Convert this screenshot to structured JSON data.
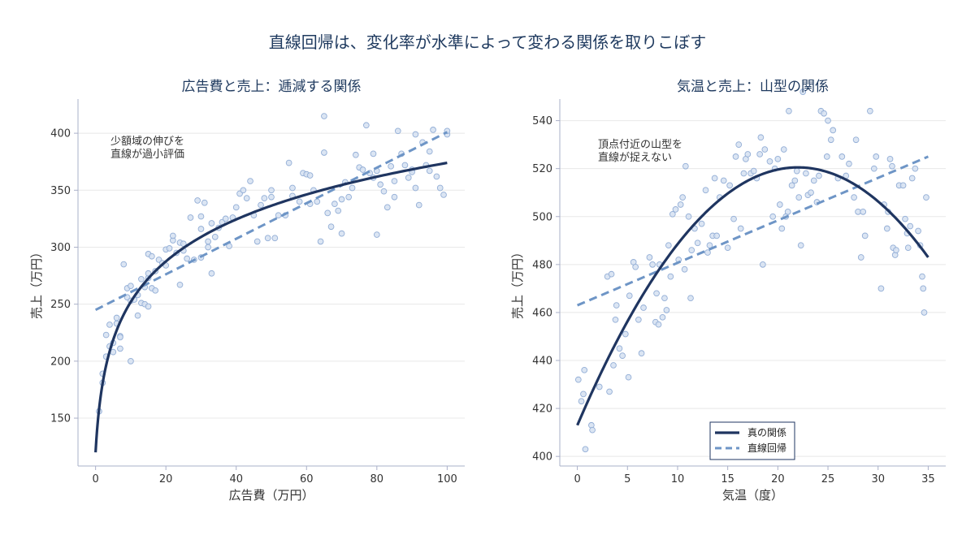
{
  "suptitle": "直線回帰は、変化率が水準によって変わる関係を取りこぼす",
  "colors": {
    "true_line": "#1f3560",
    "fit_line": "#6e95c6",
    "points_fill": "#d5e1f1",
    "points_edge": "#93aed6",
    "grid": "#e8e8e8",
    "spine": "#aab0c8"
  },
  "chart_data": [
    {
      "type": "scatter",
      "title": "広告費と売上：逓減する関係",
      "xlabel": "広告費（万円）",
      "ylabel": "売上（万円）",
      "xlim": [
        -5,
        105
      ],
      "ylim": [
        108,
        430
      ],
      "xticks": [
        0,
        20,
        40,
        60,
        80,
        100
      ],
      "yticks": [
        150,
        200,
        250,
        300,
        350,
        400
      ],
      "annotation": [
        "少額域の伸びを",
        "直線が過小評価"
      ],
      "grid": "horizontal",
      "true_curve": {
        "name": "真の関係",
        "form": "log",
        "points": [
          [
            0,
            120
          ],
          [
            0.5,
            160
          ],
          [
            1,
            172
          ],
          [
            2,
            188
          ],
          [
            5,
            222
          ],
          [
            10,
            255
          ],
          [
            20,
            284
          ],
          [
            30,
            305
          ],
          [
            40,
            321
          ],
          [
            50,
            334
          ],
          [
            60,
            346
          ],
          [
            70,
            356
          ],
          [
            80,
            364
          ],
          [
            90,
            369
          ],
          [
            100,
            374
          ]
        ]
      },
      "fit_line": {
        "name": "直線回帰",
        "points": [
          [
            0,
            245
          ],
          [
            100,
            401
          ]
        ]
      },
      "points": [
        [
          1,
          156
        ],
        [
          2,
          189
        ],
        [
          2,
          181
        ],
        [
          3,
          223
        ],
        [
          3,
          204
        ],
        [
          4,
          232
        ],
        [
          4,
          213
        ],
        [
          5,
          216
        ],
        [
          5,
          208
        ],
        [
          6,
          238
        ],
        [
          6,
          233
        ],
        [
          7,
          222
        ],
        [
          7,
          221
        ],
        [
          7,
          211
        ],
        [
          8,
          285
        ],
        [
          9,
          264
        ],
        [
          9,
          256
        ],
        [
          10,
          253
        ],
        [
          10,
          266
        ],
        [
          10,
          200
        ],
        [
          11,
          254
        ],
        [
          12,
          258
        ],
        [
          12,
          240
        ],
        [
          13,
          272
        ],
        [
          13,
          251
        ],
        [
          14,
          265
        ],
        [
          14,
          250
        ],
        [
          15,
          294
        ],
        [
          15,
          273
        ],
        [
          15,
          277
        ],
        [
          15,
          248
        ],
        [
          16,
          292
        ],
        [
          16,
          264
        ],
        [
          17,
          279
        ],
        [
          17,
          262
        ],
        [
          18,
          289
        ],
        [
          19,
          286
        ],
        [
          20,
          298
        ],
        [
          20,
          284
        ],
        [
          21,
          299
        ],
        [
          22,
          306
        ],
        [
          22,
          310
        ],
        [
          23,
          295
        ],
        [
          24,
          304
        ],
        [
          24,
          267
        ],
        [
          25,
          303
        ],
        [
          25,
          297
        ],
        [
          26,
          290
        ],
        [
          27,
          326
        ],
        [
          28,
          289
        ],
        [
          29,
          341
        ],
        [
          30,
          327
        ],
        [
          30,
          316
        ],
        [
          30,
          291
        ],
        [
          31,
          339
        ],
        [
          32,
          305
        ],
        [
          32,
          300
        ],
        [
          33,
          277
        ],
        [
          33,
          321
        ],
        [
          34,
          309
        ],
        [
          35,
          317
        ],
        [
          36,
          322
        ],
        [
          37,
          325
        ],
        [
          38,
          301
        ],
        [
          39,
          326
        ],
        [
          40,
          335
        ],
        [
          41,
          347
        ],
        [
          42,
          350
        ],
        [
          43,
          343
        ],
        [
          44,
          358
        ],
        [
          45,
          328
        ],
        [
          46,
          305
        ],
        [
          47,
          337
        ],
        [
          48,
          343
        ],
        [
          49,
          308
        ],
        [
          50,
          350
        ],
        [
          50,
          344
        ],
        [
          51,
          308
        ],
        [
          52,
          328
        ],
        [
          54,
          328
        ],
        [
          55,
          374
        ],
        [
          56,
          352
        ],
        [
          56,
          345
        ],
        [
          58,
          340
        ],
        [
          59,
          365
        ],
        [
          60,
          364
        ],
        [
          61,
          363
        ],
        [
          61,
          338
        ],
        [
          62,
          350
        ],
        [
          63,
          340
        ],
        [
          64,
          305
        ],
        [
          65,
          383
        ],
        [
          65,
          415
        ],
        [
          66,
          330
        ],
        [
          67,
          318
        ],
        [
          68,
          338
        ],
        [
          69,
          332
        ],
        [
          70,
          342
        ],
        [
          70,
          312
        ],
        [
          71,
          357
        ],
        [
          72,
          344
        ],
        [
          73,
          352
        ],
        [
          74,
          381
        ],
        [
          75,
          370
        ],
        [
          76,
          368
        ],
        [
          77,
          407
        ],
        [
          78,
          365
        ],
        [
          79,
          361
        ],
        [
          79,
          382
        ],
        [
          80,
          311
        ],
        [
          80,
          367
        ],
        [
          81,
          355
        ],
        [
          82,
          349
        ],
        [
          83,
          335
        ],
        [
          84,
          371
        ],
        [
          85,
          358
        ],
        [
          85,
          344
        ],
        [
          86,
          402
        ],
        [
          87,
          382
        ],
        [
          88,
          372
        ],
        [
          89,
          361
        ],
        [
          90,
          368
        ],
        [
          90,
          366
        ],
        [
          91,
          352
        ],
        [
          91,
          399
        ],
        [
          92,
          337
        ],
        [
          93,
          392
        ],
        [
          94,
          372
        ],
        [
          95,
          367
        ],
        [
          95,
          384
        ],
        [
          96,
          403
        ],
        [
          97,
          362
        ],
        [
          98,
          352
        ],
        [
          99,
          346
        ],
        [
          100,
          399
        ],
        [
          100,
          402
        ]
      ]
    },
    {
      "type": "scatter",
      "title": "気温と売上：山型の関係",
      "xlabel": "気温（度）",
      "ylabel": "売上（万円）",
      "xlim": [
        -1.75,
        36.75
      ],
      "ylim": [
        396,
        549
      ],
      "xticks": [
        0,
        5,
        10,
        15,
        20,
        25,
        30,
        35
      ],
      "yticks": [
        400,
        420,
        440,
        460,
        480,
        500,
        520,
        540
      ],
      "annotation": [
        "頂点付近の山型を",
        "直線が捉えない"
      ],
      "grid": "horizontal",
      "legend": {
        "position": "lower center",
        "entries": [
          "真の関係",
          "直線回帰"
        ]
      },
      "true_curve": {
        "name": "真の関係",
        "form": "quadratic",
        "points": [
          [
            0,
            413
          ],
          [
            2.5,
            435
          ],
          [
            5,
            455
          ],
          [
            7.5,
            472
          ],
          [
            10,
            488
          ],
          [
            12.5,
            499
          ],
          [
            15,
            510
          ],
          [
            17.5,
            516
          ],
          [
            20,
            520
          ],
          [
            22,
            520
          ],
          [
            25,
            517
          ],
          [
            27.5,
            512
          ],
          [
            30,
            504
          ],
          [
            32.5,
            494
          ],
          [
            35,
            483
          ]
        ]
      },
      "fit_line": {
        "name": "直線回帰",
        "points": [
          [
            0,
            463
          ],
          [
            35,
            525
          ]
        ]
      },
      "points": [
        [
          0.1,
          432
        ],
        [
          0.4,
          423
        ],
        [
          0.6,
          426
        ],
        [
          0.7,
          436
        ],
        [
          0.8,
          403
        ],
        [
          1.4,
          413
        ],
        [
          1.5,
          411
        ],
        [
          2.2,
          429
        ],
        [
          3,
          475
        ],
        [
          3.2,
          427
        ],
        [
          3.4,
          476
        ],
        [
          3.6,
          438
        ],
        [
          3.8,
          457
        ],
        [
          3.9,
          463
        ],
        [
          4.2,
          445
        ],
        [
          4.5,
          442
        ],
        [
          4.8,
          451
        ],
        [
          5.1,
          433
        ],
        [
          5.2,
          467
        ],
        [
          5.6,
          481
        ],
        [
          5.8,
          479
        ],
        [
          6.1,
          457
        ],
        [
          6.4,
          443
        ],
        [
          6.6,
          462
        ],
        [
          7.2,
          483
        ],
        [
          7.5,
          480
        ],
        [
          7.8,
          456
        ],
        [
          7.9,
          468
        ],
        [
          8.1,
          455
        ],
        [
          8.2,
          480
        ],
        [
          8.5,
          458
        ],
        [
          8.7,
          466
        ],
        [
          8.9,
          461
        ],
        [
          9.1,
          488
        ],
        [
          9.3,
          475
        ],
        [
          9.5,
          501
        ],
        [
          9.8,
          503
        ],
        [
          10.1,
          482
        ],
        [
          10.3,
          505
        ],
        [
          10.5,
          508
        ],
        [
          10.7,
          478
        ],
        [
          10.8,
          521
        ],
        [
          11.1,
          500
        ],
        [
          11.3,
          466
        ],
        [
          11.4,
          486
        ],
        [
          11.7,
          495
        ],
        [
          12,
          489
        ],
        [
          12.4,
          497
        ],
        [
          12.8,
          511
        ],
        [
          13,
          485
        ],
        [
          13.2,
          488
        ],
        [
          13.5,
          492
        ],
        [
          13.7,
          516
        ],
        [
          13.9,
          492
        ],
        [
          14.2,
          508
        ],
        [
          14.6,
          515
        ],
        [
          15,
          487
        ],
        [
          15.2,
          513
        ],
        [
          15.6,
          499
        ],
        [
          15.8,
          525
        ],
        [
          16.1,
          530
        ],
        [
          16.3,
          495
        ],
        [
          16.6,
          518
        ],
        [
          16.8,
          524
        ],
        [
          17,
          526
        ],
        [
          17.3,
          518
        ],
        [
          17.6,
          519
        ],
        [
          17.9,
          516
        ],
        [
          18.2,
          526
        ],
        [
          18.3,
          533
        ],
        [
          18.5,
          480
        ],
        [
          18.7,
          528
        ],
        [
          19.2,
          523
        ],
        [
          19.5,
          500
        ],
        [
          19.7,
          520
        ],
        [
          20,
          524
        ],
        [
          20.2,
          505
        ],
        [
          20.4,
          495
        ],
        [
          20.6,
          528
        ],
        [
          20.8,
          500
        ],
        [
          21,
          502
        ],
        [
          21.1,
          544
        ],
        [
          21.4,
          513
        ],
        [
          21.7,
          515
        ],
        [
          21.9,
          519
        ],
        [
          22.1,
          508
        ],
        [
          22.3,
          488
        ],
        [
          22.5,
          552
        ],
        [
          22.8,
          518
        ],
        [
          23,
          509
        ],
        [
          23.3,
          510
        ],
        [
          23.6,
          515
        ],
        [
          23.9,
          506
        ],
        [
          24.1,
          517
        ],
        [
          24.3,
          544
        ],
        [
          24.6,
          543
        ],
        [
          24.9,
          525
        ],
        [
          25,
          540
        ],
        [
          25.3,
          532
        ],
        [
          25.5,
          536
        ],
        [
          26,
          516
        ],
        [
          26.4,
          525
        ],
        [
          26.8,
          517
        ],
        [
          27.1,
          522
        ],
        [
          27.6,
          508
        ],
        [
          27.8,
          532
        ],
        [
          28,
          502
        ],
        [
          28.3,
          483
        ],
        [
          28.5,
          502
        ],
        [
          28.7,
          492
        ],
        [
          29.2,
          544
        ],
        [
          29.6,
          520
        ],
        [
          29.8,
          525
        ],
        [
          30.3,
          470
        ],
        [
          30.6,
          505
        ],
        [
          30.9,
          495
        ],
        [
          31,
          502
        ],
        [
          31.2,
          524
        ],
        [
          31.4,
          521
        ],
        [
          31.5,
          487
        ],
        [
          31.7,
          484
        ],
        [
          31.8,
          486
        ],
        [
          32.1,
          513
        ],
        [
          32.5,
          513
        ],
        [
          32.7,
          499
        ],
        [
          32.9,
          493
        ],
        [
          33,
          487
        ],
        [
          33.2,
          496
        ],
        [
          33.4,
          516
        ],
        [
          33.7,
          520
        ],
        [
          34,
          494
        ],
        [
          34.2,
          488
        ],
        [
          34.4,
          475
        ],
        [
          34.5,
          470
        ],
        [
          34.6,
          460
        ],
        [
          34.8,
          508
        ]
      ]
    }
  ]
}
